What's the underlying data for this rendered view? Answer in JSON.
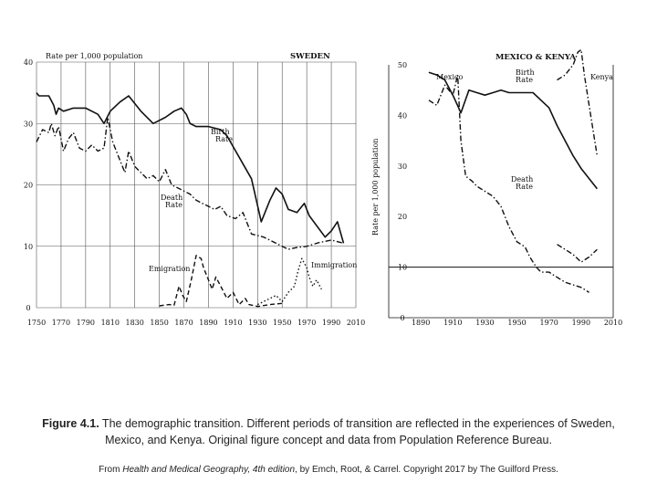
{
  "chart_data": [
    {
      "type": "line",
      "title": "SWEDEN",
      "ylabel": "Rate per 1,000 population",
      "xlabel": "",
      "xlim": [
        1750,
        2010
      ],
      "ylim": [
        0,
        40
      ],
      "grid": true,
      "x_ticks": [
        1750,
        1770,
        1790,
        1810,
        1830,
        1850,
        1870,
        1890,
        1910,
        1930,
        1950,
        1970,
        1990,
        2010
      ],
      "y_ticks": [
        0,
        10,
        20,
        30,
        40
      ],
      "series": [
        {
          "name": "Birth Rate",
          "style": "solid",
          "points": [
            [
              1750,
              35
            ],
            [
              1752,
              34.5
            ],
            [
              1760,
              34.5
            ],
            [
              1764,
              33
            ],
            [
              1766,
              31.5
            ],
            [
              1768,
              32.5
            ],
            [
              1772,
              32
            ],
            [
              1780,
              32.5
            ],
            [
              1790,
              32.5
            ],
            [
              1800,
              31.5
            ],
            [
              1805,
              30
            ],
            [
              1810,
              32
            ],
            [
              1818,
              33.5
            ],
            [
              1825,
              34.5
            ],
            [
              1835,
              32
            ],
            [
              1845,
              30
            ],
            [
              1855,
              31
            ],
            [
              1862,
              32
            ],
            [
              1868,
              32.5
            ],
            [
              1872,
              31.5
            ],
            [
              1875,
              30
            ],
            [
              1880,
              29.5
            ],
            [
              1890,
              29.5
            ],
            [
              1900,
              29
            ],
            [
              1905,
              28
            ],
            [
              1915,
              24.5
            ],
            [
              1925,
              21
            ],
            [
              1933,
              14
            ],
            [
              1940,
              17.5
            ],
            [
              1945,
              19.5
            ],
            [
              1950,
              18.5
            ],
            [
              1955,
              16
            ],
            [
              1962,
              15.5
            ],
            [
              1968,
              17
            ],
            [
              1972,
              15
            ],
            [
              1985,
              11.5
            ],
            [
              1990,
              12.5
            ],
            [
              1995,
              14
            ],
            [
              2000,
              10.5
            ]
          ]
        },
        {
          "name": "Death Rate",
          "style": "dash-dot",
          "points": [
            [
              1750,
              27
            ],
            [
              1755,
              29
            ],
            [
              1760,
              28.5
            ],
            [
              1762,
              30
            ],
            [
              1765,
              28
            ],
            [
              1768,
              29.5
            ],
            [
              1772,
              25.5
            ],
            [
              1776,
              27.5
            ],
            [
              1780,
              28.5
            ],
            [
              1785,
              26
            ],
            [
              1790,
              25.5
            ],
            [
              1795,
              26.5
            ],
            [
              1800,
              25.5
            ],
            [
              1805,
              26
            ],
            [
              1808,
              31
            ],
            [
              1812,
              27
            ],
            [
              1818,
              24
            ],
            [
              1822,
              22
            ],
            [
              1825,
              25.5
            ],
            [
              1830,
              23
            ],
            [
              1840,
              21
            ],
            [
              1845,
              21.5
            ],
            [
              1850,
              20.5
            ],
            [
              1855,
              22.5
            ],
            [
              1860,
              20
            ],
            [
              1870,
              19
            ],
            [
              1875,
              18.5
            ],
            [
              1880,
              17.5
            ],
            [
              1885,
              17
            ],
            [
              1890,
              16.5
            ],
            [
              1895,
              16
            ],
            [
              1900,
              16.5
            ],
            [
              1905,
              15
            ],
            [
              1912,
              14.5
            ],
            [
              1918,
              15.5
            ],
            [
              1925,
              12
            ],
            [
              1935,
              11.5
            ],
            [
              1940,
              11
            ],
            [
              1945,
              10.5
            ],
            [
              1950,
              10
            ],
            [
              1955,
              9.5
            ],
            [
              1962,
              9.8
            ],
            [
              1970,
              10
            ],
            [
              1980,
              10.6
            ],
            [
              1990,
              11
            ],
            [
              2000,
              10.5
            ]
          ]
        },
        {
          "name": "Emigration",
          "style": "dashed",
          "points": [
            [
              1850,
              0.3
            ],
            [
              1858,
              0.5
            ],
            [
              1862,
              0.4
            ],
            [
              1866,
              3.5
            ],
            [
              1869,
              2
            ],
            [
              1872,
              1
            ],
            [
              1876,
              4.5
            ],
            [
              1880,
              8.5
            ],
            [
              1884,
              8
            ],
            [
              1886,
              6.5
            ],
            [
              1890,
              4.5
            ],
            [
              1893,
              3
            ],
            [
              1896,
              5
            ],
            [
              1900,
              3.5
            ],
            [
              1905,
              1.5
            ],
            [
              1910,
              2.5
            ],
            [
              1915,
              0.5
            ],
            [
              1920,
              1.5
            ],
            [
              1923,
              0.5
            ],
            [
              1930,
              0.2
            ],
            [
              1940,
              0.5
            ],
            [
              1950,
              0.7
            ]
          ]
        },
        {
          "name": "Immigration",
          "style": "dotted",
          "points": [
            [
              1930,
              0.5
            ],
            [
              1945,
              2
            ],
            [
              1950,
              1
            ],
            [
              1955,
              2.5
            ],
            [
              1960,
              3.5
            ],
            [
              1963,
              6
            ],
            [
              1966,
              8
            ],
            [
              1970,
              6.5
            ],
            [
              1972,
              5
            ],
            [
              1975,
              3.5
            ],
            [
              1978,
              4.5
            ],
            [
              1982,
              3
            ]
          ]
        }
      ]
    },
    {
      "type": "line",
      "title": "MEXICO & KENYA",
      "ylabel": "Rate per 1,000 population",
      "xlabel": "",
      "xlim": [
        1870,
        2010
      ],
      "ylim": [
        0,
        50
      ],
      "grid": false,
      "hline": 10,
      "x_ticks": [
        1890,
        1910,
        1930,
        1950,
        1970,
        1990,
        2010
      ],
      "y_ticks": [
        0,
        10,
        20,
        30,
        40,
        50
      ],
      "series": [
        {
          "name": "Mexico Birth Rate",
          "style": "solid",
          "points": [
            [
              1895,
              48.5
            ],
            [
              1900,
              48
            ],
            [
              1905,
              47
            ],
            [
              1910,
              44
            ],
            [
              1915,
              40.5
            ],
            [
              1920,
              45
            ],
            [
              1925,
              44.5
            ],
            [
              1930,
              44
            ],
            [
              1935,
              44.5
            ],
            [
              1940,
              45
            ],
            [
              1945,
              44.5
            ],
            [
              1950,
              44.5
            ],
            [
              1955,
              44.5
            ],
            [
              1960,
              44.5
            ],
            [
              1965,
              43
            ],
            [
              1970,
              41.5
            ],
            [
              1975,
              38
            ],
            [
              1980,
              35
            ],
            [
              1985,
              32
            ],
            [
              1990,
              29.5
            ],
            [
              1995,
              27.5
            ],
            [
              2000,
              25.5
            ]
          ]
        },
        {
          "name": "Mexico Death Rate",
          "style": "dash-dot",
          "points": [
            [
              1895,
              43
            ],
            [
              1900,
              42
            ],
            [
              1905,
              46
            ],
            [
              1910,
              44
            ],
            [
              1913,
              48
            ],
            [
              1915,
              35
            ],
            [
              1918,
              28
            ],
            [
              1922,
              27
            ],
            [
              1925,
              26
            ],
            [
              1930,
              25
            ],
            [
              1935,
              24
            ],
            [
              1940,
              22
            ],
            [
              1945,
              18
            ],
            [
              1950,
              15
            ],
            [
              1955,
              14
            ],
            [
              1958,
              12
            ],
            [
              1962,
              10
            ],
            [
              1965,
              9
            ],
            [
              1970,
              9
            ],
            [
              1975,
              8
            ],
            [
              1980,
              7
            ],
            [
              1985,
              6.5
            ],
            [
              1990,
              6
            ],
            [
              1995,
              5
            ]
          ]
        },
        {
          "name": "Kenya Birth Rate",
          "style": "dash-dot",
          "points": [
            [
              1975,
              47
            ],
            [
              1980,
              48
            ],
            [
              1985,
              50
            ],
            [
              1988,
              52.5
            ],
            [
              1990,
              53
            ],
            [
              1992,
              48
            ],
            [
              1995,
              42
            ],
            [
              2000,
              32
            ]
          ]
        },
        {
          "name": "Kenya Death Rate",
          "style": "dash-dot",
          "points": [
            [
              1975,
              14.5
            ],
            [
              1980,
              13.5
            ],
            [
              1985,
              12.5
            ],
            [
              1990,
              11
            ],
            [
              1995,
              12
            ],
            [
              2000,
              13.5
            ]
          ]
        }
      ]
    }
  ],
  "figure": {
    "left_title": "SWEDEN",
    "left_ylabel": "Rate per 1,000 population",
    "label_birth_rate": "Birth Rate",
    "label_death_rate": "Death Rate",
    "label_emigration": "Emigration",
    "label_immigration": "Immigration",
    "right_title": "MEXICO & KENYA",
    "right_ylabel": "Rate per 1,000 population",
    "label_mexico": "Mexico",
    "label_kenya": "Kenya"
  },
  "caption": {
    "label": "Figure 4.1.",
    "text": " The demographic transition. Different periods of transition are reflected in the experiences of Sweden, Mexico, and Kenya. Original figure concept and data from Population Reference Bureau.",
    "credit_prefix": "From ",
    "credit_book": "Health and Medical Geography, 4th edition",
    "credit_suffix": ", by Emch, Root, & Carrel. Copyright 2017 by The Guilford Press."
  }
}
